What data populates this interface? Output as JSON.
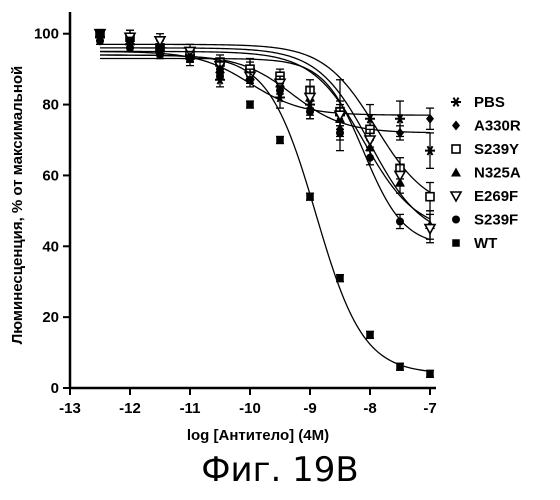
{
  "caption": "Фиг. 19B",
  "chart_data": {
    "type": "scatter",
    "xlabel": "log [Антитело] (4M)",
    "ylabel": "Люминесценция, % от максимальной",
    "xlim": [
      -13,
      -7
    ],
    "ylim": [
      0,
      105
    ],
    "xticks": [
      -13,
      -12,
      -11,
      -10,
      -9,
      -8,
      -7
    ],
    "yticks": [
      0,
      20,
      40,
      60,
      80,
      100
    ],
    "legend_position": "right",
    "x": [
      -12.5,
      -12,
      -11.5,
      -11,
      -10.5,
      -10,
      -9.5,
      -9,
      -8.5,
      -8,
      -7.5,
      -7
    ],
    "series": [
      {
        "name": "PBS",
        "marker": "asterisk",
        "values": [
          99,
          97,
          95,
          94,
          87,
          90,
          82,
          80,
          77,
          76,
          76,
          67
        ],
        "errors": [
          1,
          2,
          2,
          2,
          2,
          3,
          3,
          3,
          10,
          4,
          5,
          5
        ],
        "curve": {
          "top": 95,
          "bottom": 77,
          "logec50": -10.0,
          "hill": 1.0
        }
      },
      {
        "name": "A330R",
        "marker": "diamond",
        "values": [
          98,
          97,
          95,
          94,
          91,
          88,
          85,
          78,
          73,
          70,
          72,
          76
        ],
        "errors": [
          1,
          1,
          1,
          2,
          2,
          2,
          2,
          2,
          2,
          2,
          2,
          3
        ],
        "curve": {
          "top": 94,
          "bottom": 72,
          "logec50": -9.3,
          "hill": 1.0
        }
      },
      {
        "name": "S239Y",
        "marker": "square-open",
        "values": [
          100,
          99,
          96,
          94,
          92,
          90,
          88,
          84,
          78,
          73,
          62,
          54
        ],
        "errors": [
          1,
          2,
          2,
          2,
          2,
          2,
          2,
          3,
          3,
          3,
          3,
          4
        ],
        "curve": {
          "top": 97,
          "bottom": 50,
          "logec50": -7.9,
          "hill": 1.0
        }
      },
      {
        "name": "N325A",
        "marker": "triangle-up",
        "values": [
          100,
          98,
          96,
          94,
          90,
          88,
          86,
          82,
          76,
          68,
          58,
          46
        ],
        "errors": [
          1,
          2,
          2,
          2,
          2,
          2,
          2,
          3,
          3,
          3,
          3,
          4
        ],
        "curve": {
          "top": 96,
          "bottom": 42,
          "logec50": -8.0,
          "hill": 1.0
        }
      },
      {
        "name": "E269F",
        "marker": "triangle-down-open",
        "values": [
          100,
          99,
          98,
          95,
          91,
          88,
          86,
          82,
          77,
          70,
          60,
          45
        ],
        "errors": [
          1,
          2,
          2,
          2,
          2,
          2,
          2,
          3,
          3,
          3,
          3,
          4
        ],
        "curve": {
          "top": 95,
          "bottom": 44,
          "logec50": -8.1,
          "hill": 1.0
        }
      },
      {
        "name": "S239F",
        "marker": "circle",
        "values": [
          98,
          96,
          94,
          93,
          90,
          87,
          84,
          78,
          72,
          65,
          47,
          null
        ],
        "errors": [
          1,
          1,
          1,
          2,
          2,
          2,
          2,
          2,
          2,
          2,
          2,
          0
        ],
        "curve": {
          "top": 93,
          "bottom": 40,
          "logec50": -8.1,
          "hill": 1.3
        }
      },
      {
        "name": "WT",
        "marker": "square",
        "values": [
          100,
          98,
          96,
          93,
          88,
          80,
          70,
          54,
          31,
          15,
          6,
          4
        ],
        "errors": [
          1,
          1,
          1,
          1,
          1,
          1,
          1,
          1,
          1,
          1,
          1,
          1
        ],
        "curve": {
          "top": 94,
          "bottom": 4,
          "logec50": -8.9,
          "hill": 1.1
        }
      }
    ]
  }
}
